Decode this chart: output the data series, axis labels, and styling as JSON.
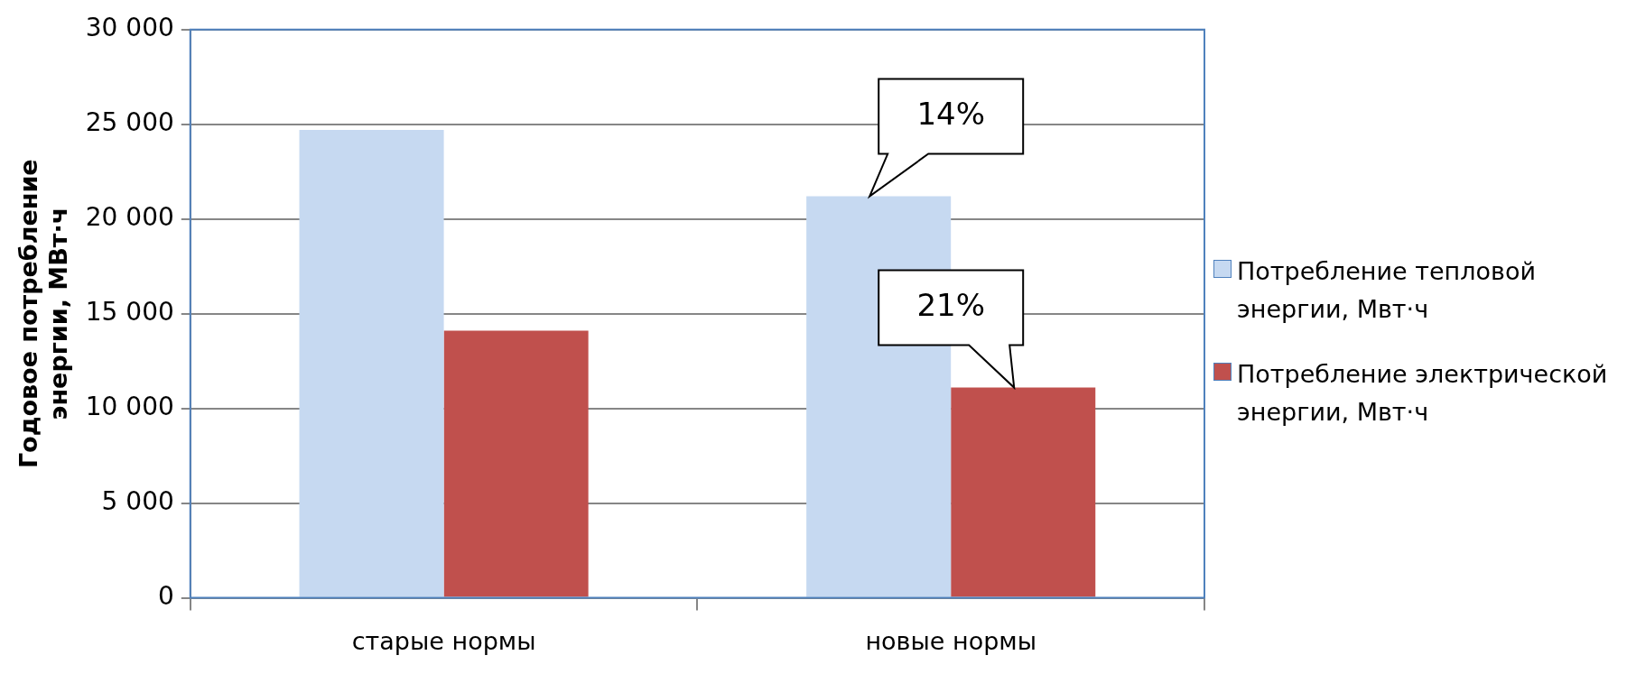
{
  "chart_data": {
    "type": "bar",
    "ylabel": "Годовое потребление энергии, МВт·ч",
    "categories": [
      "старые нормы",
      "новые нормы"
    ],
    "series": [
      {
        "name": "Потребление тепловой энергии, Мвт·ч",
        "color": "#c6d9f1",
        "values": [
          24700,
          21200
        ]
      },
      {
        "name": "Потребление электрической энергии, Мвт·ч",
        "color": "#c0504d",
        "values": [
          14100,
          11100
        ]
      }
    ],
    "ylim": [
      0,
      30000
    ],
    "yticks": [
      {
        "value": 0,
        "label": "0"
      },
      {
        "value": 5000,
        "label": "5 000"
      },
      {
        "value": 10000,
        "label": "10 000"
      },
      {
        "value": 15000,
        "label": "15 000"
      },
      {
        "value": 20000,
        "label": "20 000"
      },
      {
        "value": 25000,
        "label": "25 000"
      },
      {
        "value": 30000,
        "label": "30 000"
      }
    ],
    "grid": "y",
    "legend": "right",
    "annotations": [
      {
        "text": "14%",
        "x": "новые нормы",
        "y": 21200
      },
      {
        "text": "21%",
        "x": "новые нормы",
        "y": 11100
      }
    ]
  }
}
